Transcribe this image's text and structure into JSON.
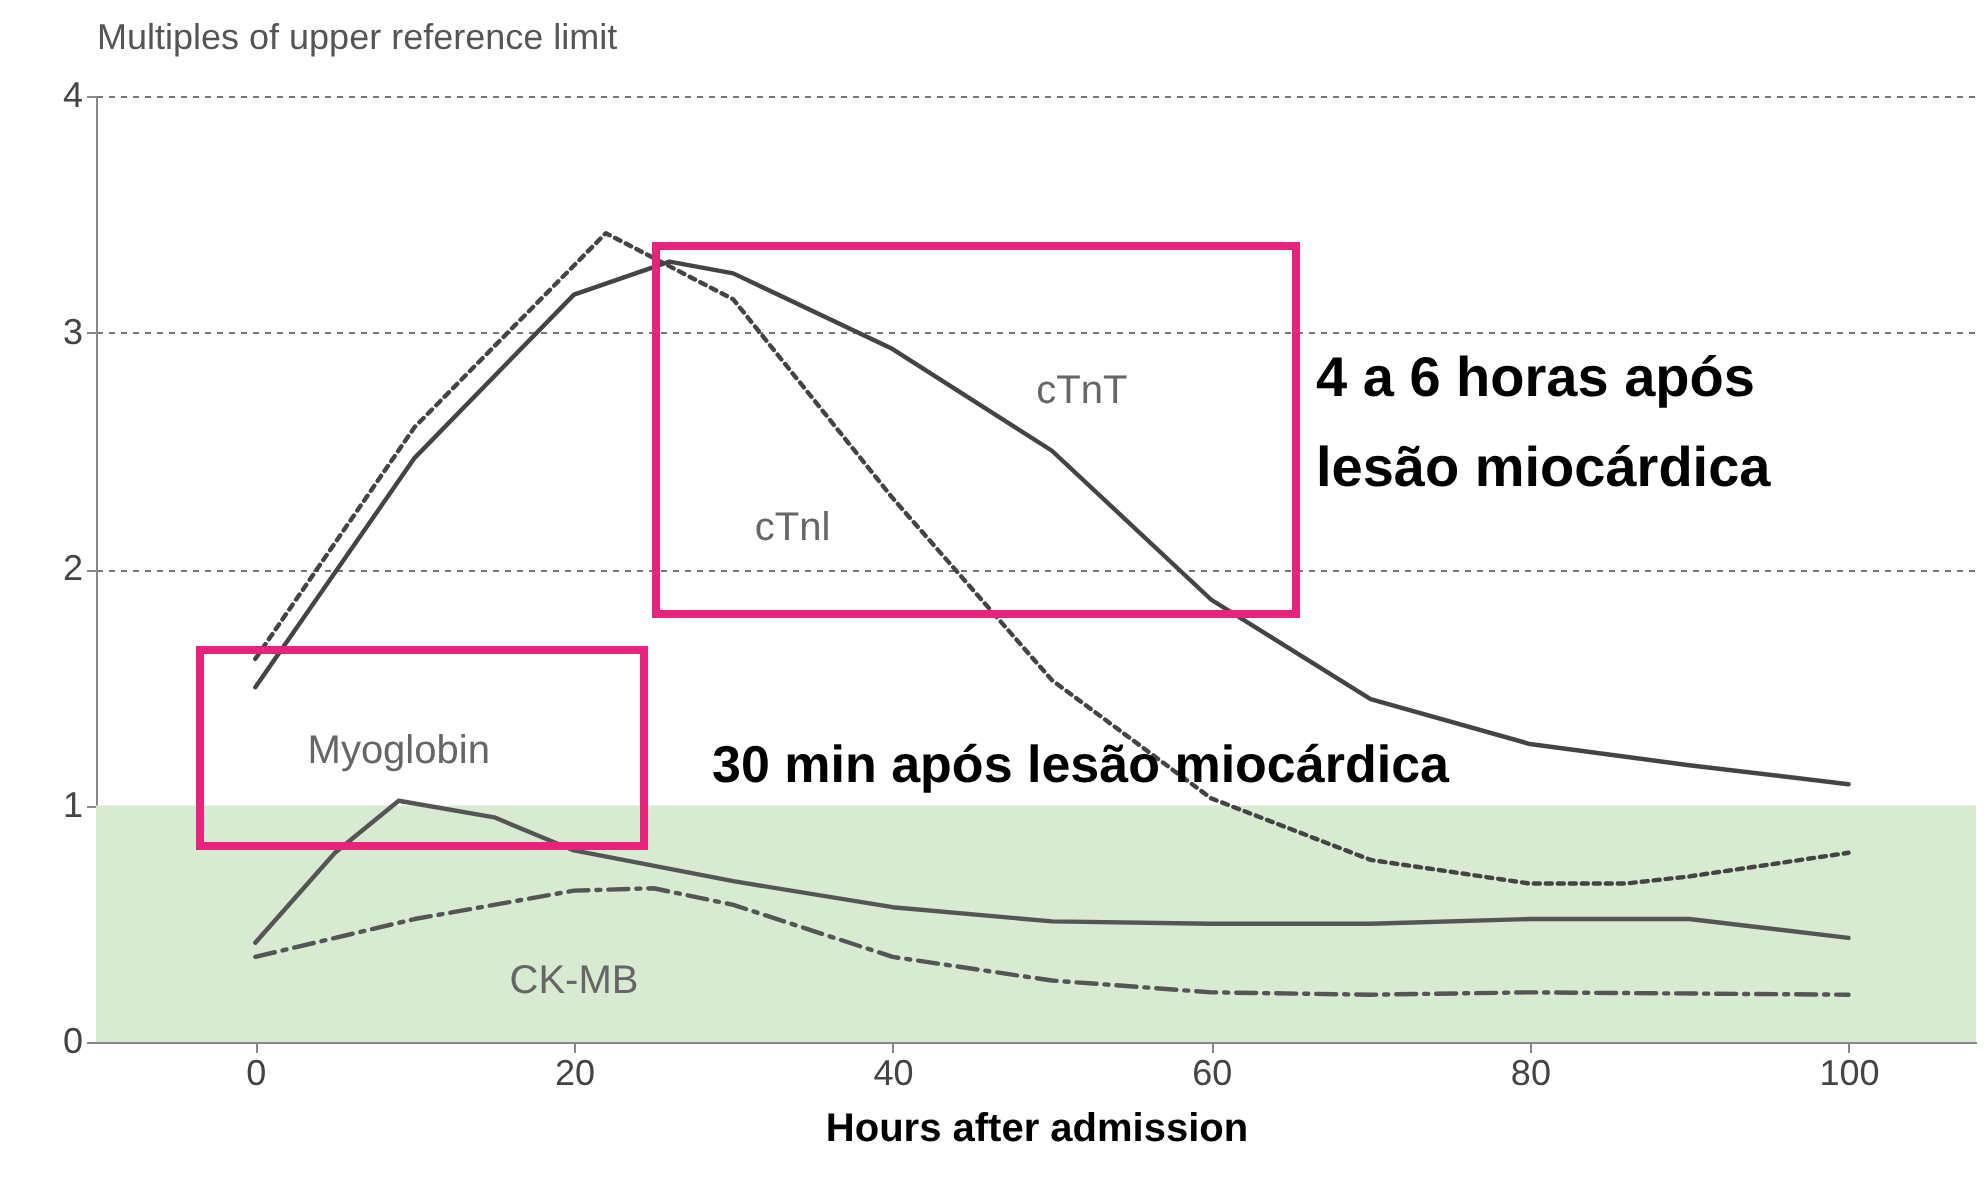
{
  "chart_data": {
    "type": "line",
    "ylabel": "Multiples of upper reference limit",
    "xlabel": "Hours after admission",
    "xlim": [
      -10,
      108
    ],
    "ylim": [
      0,
      4
    ],
    "xticks": [
      0,
      20,
      40,
      60,
      80,
      100
    ],
    "yticks": [
      0,
      1,
      2,
      3,
      4
    ],
    "grid": "y",
    "marker": "none",
    "series": [
      {
        "name": "cTnT",
        "color": "#444444",
        "line_style": "solid",
        "x": [
          0,
          10,
          20,
          26,
          30,
          40,
          50,
          60,
          70,
          80,
          90,
          100
        ],
        "values": [
          1.5,
          2.47,
          3.16,
          3.3,
          3.25,
          2.93,
          2.5,
          1.87,
          1.45,
          1.26,
          1.17,
          1.09
        ]
      },
      {
        "name": "cTnl",
        "color": "#444444",
        "line_style": "dotted",
        "x": [
          0,
          10,
          22,
          30,
          40,
          50,
          60,
          70,
          80,
          86,
          90,
          100
        ],
        "values": [
          1.62,
          2.6,
          3.42,
          3.14,
          2.3,
          1.53,
          1.03,
          0.77,
          0.67,
          0.67,
          0.7,
          0.8
        ]
      },
      {
        "name": "Myoglobin",
        "color": "#555555",
        "line_style": "solid",
        "x": [
          0,
          5,
          9,
          15,
          20,
          30,
          40,
          50,
          60,
          70,
          80,
          90,
          100
        ],
        "values": [
          0.42,
          0.8,
          1.02,
          0.95,
          0.81,
          0.68,
          0.57,
          0.51,
          0.5,
          0.5,
          0.52,
          0.52,
          0.44
        ]
      },
      {
        "name": "CK-MB",
        "color": "#555555",
        "line_style": "dashed",
        "x": [
          0,
          10,
          20,
          25,
          30,
          40,
          50,
          60,
          70,
          80,
          100
        ],
        "values": [
          0.36,
          0.52,
          0.64,
          0.65,
          0.58,
          0.36,
          0.26,
          0.21,
          0.2,
          0.21,
          0.2
        ]
      }
    ],
    "bands": [
      {
        "axis": "y",
        "from": 0,
        "to": 1,
        "color": "#d9ead3"
      }
    ],
    "annotations": [
      "4 a 6 horas após lesão miocárdica",
      "30 min após lesão miocárdica"
    ]
  }
}
